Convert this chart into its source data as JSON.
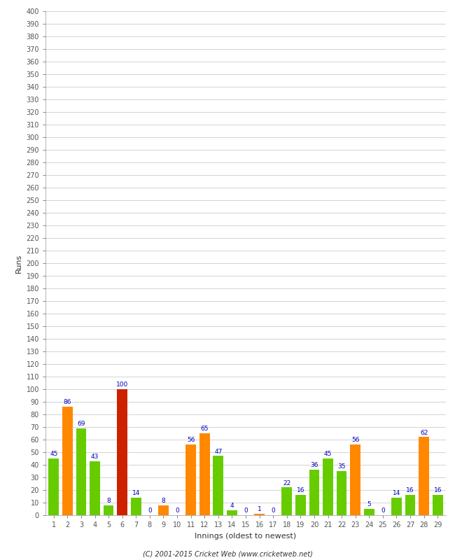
{
  "xlabel": "Innings (oldest to newest)",
  "ylabel": "Runs",
  "innings": [
    1,
    2,
    3,
    4,
    5,
    6,
    7,
    8,
    9,
    10,
    11,
    12,
    13,
    14,
    15,
    16,
    17,
    18,
    19,
    20,
    21,
    22,
    23,
    24,
    25,
    26,
    27,
    28,
    29
  ],
  "values": [
    45,
    86,
    69,
    43,
    8,
    100,
    14,
    0,
    8,
    0,
    56,
    65,
    47,
    4,
    0,
    1,
    0,
    22,
    16,
    36,
    45,
    35,
    56,
    5,
    0,
    14,
    16,
    62,
    16
  ],
  "colors": [
    "#66cc00",
    "#ff8800",
    "#66cc00",
    "#66cc00",
    "#66cc00",
    "#cc2200",
    "#66cc00",
    "#ff8800",
    "#ff8800",
    "#ff8800",
    "#ff8800",
    "#ff8800",
    "#66cc00",
    "#66cc00",
    "#ff8800",
    "#ff8800",
    "#ff8800",
    "#66cc00",
    "#66cc00",
    "#66cc00",
    "#66cc00",
    "#66cc00",
    "#ff8800",
    "#66cc00",
    "#ff8800",
    "#66cc00",
    "#66cc00",
    "#ff8800",
    "#66cc00"
  ],
  "ylim": [
    0,
    400
  ],
  "ytick_step": 10,
  "background_color": "#ffffff",
  "grid_color": "#cccccc",
  "label_color": "#0000bb",
  "tick_color": "#555555",
  "footer": "(C) 2001-2015 Cricket Web (www.cricketweb.net)",
  "bar_width": 0.75
}
